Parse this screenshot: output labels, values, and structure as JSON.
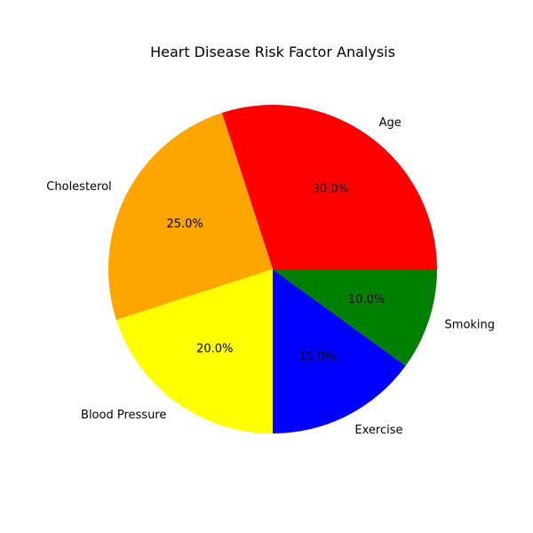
{
  "chart_data": {
    "type": "pie",
    "title": "Heart Disease Risk Factor Analysis",
    "categories": [
      "Age",
      "Cholesterol",
      "Blood Pressure",
      "Exercise",
      "Smoking"
    ],
    "values": [
      30,
      25,
      20,
      15,
      10
    ],
    "percent_labels": [
      "30.0%",
      "25.0%",
      "20.0%",
      "15.0%",
      "10.0%"
    ],
    "colors": [
      "#ff0000",
      "#ffa500",
      "#ffff00",
      "#0000ff",
      "#008000"
    ],
    "start_angle_deg": 0,
    "direction": "counterclockwise",
    "legend": "none"
  }
}
